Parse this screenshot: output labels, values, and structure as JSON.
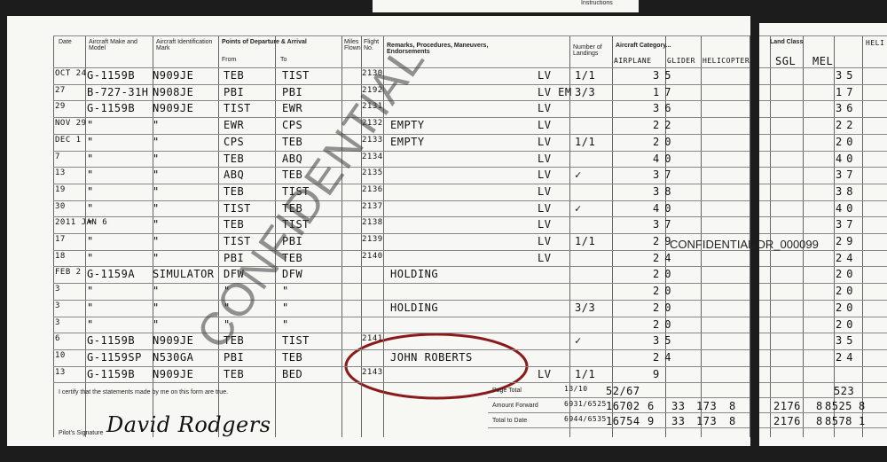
{
  "top_note": "Instructions",
  "left": {
    "headers": {
      "date": "Date",
      "make": "Aircraft Make and Model",
      "ident": "Aircraft Identification Mark",
      "points": "Points of Departure & Arrival",
      "from": "From",
      "to": "To",
      "miles": "Miles Flown",
      "flight": "Flight No.",
      "remarks": "Remarks, Procedures, Maneuvers, Endorsements",
      "landings": "Number of Landings",
      "category": "Aircraft Category...",
      "airplane": "AIRPLANE",
      "glider": "GLIDER",
      "helicopter": "HELICOPTER"
    },
    "rows": [
      [
        "OCT 24",
        "G-1159B",
        "N909JE",
        "TEB",
        "TIST",
        "2130",
        null,
        "LV",
        "1/1",
        "35"
      ],
      [
        "27",
        "B-727-31H",
        "N908JE",
        "PBI",
        "PBI",
        "2192",
        null,
        "LV EM",
        "3/3",
        "17"
      ],
      [
        "29",
        "G-1159B",
        "N909JE",
        "TIST",
        "EWR",
        "2131",
        null,
        "LV",
        null,
        "36"
      ],
      [
        "NOV 29",
        "\"",
        "\"",
        "EWR",
        "CPS",
        "2132",
        "EMPTY",
        "LV",
        null,
        "22"
      ],
      [
        "DEC 1",
        "\"",
        "\"",
        "CPS",
        "TEB",
        "2133",
        "EMPTY",
        "LV",
        "1/1",
        "20"
      ],
      [
        "7",
        "\"",
        "\"",
        "TEB",
        "ABQ",
        "2134",
        null,
        "LV",
        null,
        "40"
      ],
      [
        "13",
        "\"",
        "\"",
        "ABQ",
        "TEB",
        "2135",
        null,
        "LV",
        "✓",
        "37"
      ],
      [
        "19",
        "\"",
        "\"",
        "TEB",
        "TIST",
        "2136",
        null,
        "LV",
        null,
        "38"
      ],
      [
        "30",
        "\"",
        "\"",
        "TIST",
        "TEB",
        "2137",
        null,
        "LV",
        "✓",
        "40"
      ],
      [
        "2011 JAN 6",
        "\"",
        "\"",
        "TEB",
        "TIST",
        "2138",
        null,
        "LV",
        null,
        "37"
      ],
      [
        "17",
        "\"",
        "\"",
        "TIST",
        "PBI",
        "2139",
        null,
        "LV",
        "1/1",
        "29"
      ],
      [
        "18",
        "\"",
        "\"",
        "PBI",
        "TEB",
        "2140",
        null,
        "LV",
        null,
        "24"
      ],
      [
        "FEB 2",
        "G-1159A",
        "SIMULATOR",
        "DFW",
        "DFW",
        null,
        "HOLDING",
        null,
        null,
        "20"
      ],
      [
        "3",
        "\"",
        "\"",
        "\"",
        "\"",
        null,
        null,
        null,
        null,
        "20"
      ],
      [
        "3",
        "\"",
        "\"",
        "\"",
        "\"",
        null,
        "HOLDING",
        null,
        "3/3",
        "20"
      ],
      [
        "3",
        "\"",
        "\"",
        "\"",
        "\"",
        null,
        null,
        null,
        null,
        "20"
      ],
      [
        "6",
        "G-1159B",
        "N909JE",
        "TEB",
        "TIST",
        "2141",
        null,
        null,
        "✓",
        "35"
      ],
      [
        "10",
        "G-1159SP",
        "N530GA",
        "PBI",
        "TEB",
        null,
        "JOHN ROBERTS",
        null,
        null,
        "24"
      ],
      [
        "13",
        "G-1159B",
        "N909JE",
        "TEB",
        "BED",
        "2143",
        null,
        "LV",
        "1/1",
        "9"
      ]
    ],
    "certify": "I certify that the statements made by me on this form are true.",
    "signature_label": "Pilot's Signature",
    "signature": "David Rodgers",
    "totals": [
      {
        "label": "Page Total",
        "values": [
          "13/10",
          "52/67"
        ]
      },
      {
        "label": "Amount Forward",
        "values": [
          "6931/6525",
          "16702",
          "6",
          "33",
          "173",
          "8"
        ]
      },
      {
        "label": "Total to Date",
        "values": [
          "6944/6535",
          "16754",
          "9",
          "33",
          "173",
          "8"
        ]
      }
    ]
  },
  "right": {
    "headers": {
      "class": "Land Class",
      "sgl": "SGL",
      "mel": "MEL",
      "heli": "HELI"
    },
    "mel": [
      "35",
      "17",
      "36",
      "22",
      "20",
      "40",
      "37",
      "38",
      "40",
      "37",
      "29",
      "24",
      "20",
      "20",
      "20",
      "20",
      "35",
      "24",
      null
    ],
    "totals": [
      [
        "523"
      ],
      [
        "2176",
        "8",
        "8525",
        "8"
      ],
      [
        "2176",
        "8",
        "8578",
        "1"
      ]
    ]
  },
  "watermark": "CONFIDENTIAL",
  "stamp": "CONFIDENTIAL DR_000099"
}
